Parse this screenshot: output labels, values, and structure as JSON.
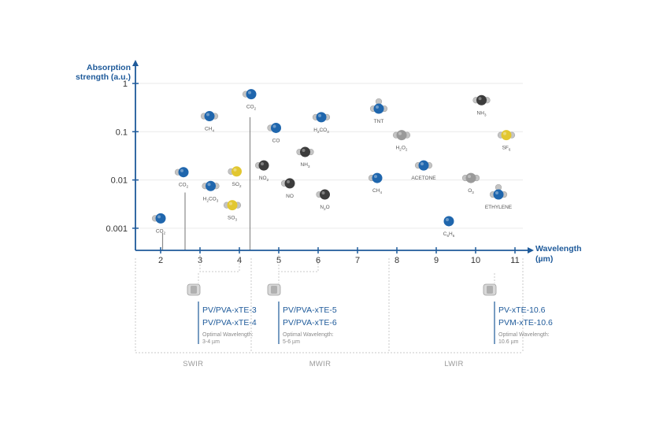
{
  "chart_data": {
    "type": "scatter",
    "xlabel": [
      "Wavelength",
      "(µm)"
    ],
    "ylabel": [
      "Absorption",
      "strength (a.u.)"
    ],
    "xlim": [
      1.35,
      11.1
    ],
    "ylim": [
      0.0003,
      1.6
    ],
    "yscale": "log",
    "grid": true,
    "x_ticks": [
      "2",
      "3",
      "4",
      "5",
      "6",
      "7",
      "8",
      "9",
      "10",
      "11"
    ],
    "y_ticks": [
      {
        "value": 1,
        "label": "1"
      },
      {
        "value": 0.1,
        "label": "0.1"
      },
      {
        "value": 0.01,
        "label": "0.01"
      },
      {
        "value": 0.001,
        "label": "0.001"
      }
    ],
    "lines": [
      {
        "x": 2.05,
        "y": 0.0008
      },
      {
        "x": 2.62,
        "y": 0.0055
      },
      {
        "x": 4.27,
        "y": 0.2
      }
    ],
    "molecules": [
      {
        "label": "CO",
        "sub": "2",
        "x": 2.0,
        "y": 0.0016,
        "color": "#1f66ad",
        "grey": 1
      },
      {
        "label": "CO",
        "sub": "2",
        "x": 2.58,
        "y": 0.0145,
        "color": "#1f66ad",
        "grey": 1
      },
      {
        "label": "CH",
        "sub": "4",
        "x": 3.24,
        "y": 0.21,
        "color": "#1f66ad",
        "grey": 2
      },
      {
        "label": "H",
        "sub": "2",
        "label2": "CO",
        "sub2": "3",
        "x": 3.27,
        "y": 0.0075,
        "color": "#1f66ad",
        "grey": 2
      },
      {
        "label": "SO",
        "sub": "2",
        "x": 3.93,
        "y": 0.015,
        "color": "#e2c731",
        "grey": 1
      },
      {
        "label": "SO",
        "sub": "3",
        "x": 3.82,
        "y": 0.003,
        "color": "#e2c731",
        "grey": 2
      },
      {
        "label": "CO",
        "sub": "2",
        "x": 4.3,
        "y": 0.6,
        "color": "#1f66ad",
        "grey": 1
      },
      {
        "label": "NO",
        "sub": "2",
        "x": 4.62,
        "y": 0.02,
        "color": "#3c3c3c",
        "grey": 1
      },
      {
        "label": "CO",
        "sub": "",
        "x": 4.93,
        "y": 0.12,
        "color": "#1f66ad",
        "grey": 1
      },
      {
        "label": "NO",
        "sub": "",
        "x": 5.28,
        "y": 0.0085,
        "color": "#3c3c3c",
        "grey": 1
      },
      {
        "label": "NH",
        "sub": "3",
        "x": 5.67,
        "y": 0.038,
        "color": "#3c3c3c",
        "grey": 2
      },
      {
        "label": "H",
        "sub": "2",
        "label2": "CO",
        "sub2": "3",
        "x": 6.08,
        "y": 0.2,
        "color": "#1f66ad",
        "grey": 2
      },
      {
        "label": "N",
        "sub": "2",
        "label2": "O",
        "sub2": "",
        "x": 6.17,
        "y": 0.005,
        "color": "#3c3c3c",
        "grey": 1
      },
      {
        "label": "TNT",
        "sub": "",
        "x": 7.54,
        "y": 0.3,
        "color": "#1f66ad",
        "grey": 3
      },
      {
        "label": "CH",
        "sub": "4",
        "x": 7.5,
        "y": 0.011,
        "color": "#1f66ad",
        "grey": 1
      },
      {
        "label": "H",
        "sub": "2",
        "label2": "O",
        "sub2": "2",
        "x": 8.12,
        "y": 0.085,
        "color": "#9a9a9a",
        "grey": 2
      },
      {
        "label": "ACETONE",
        "sub": "",
        "x": 8.68,
        "y": 0.02,
        "color": "#1f66ad",
        "grey": 2
      },
      {
        "label": "C",
        "sub": "6",
        "label2": "H",
        "sub2": "6",
        "x": 9.32,
        "y": 0.0014,
        "color": "#1f66ad",
        "grey": 0
      },
      {
        "label": "O",
        "sub": "3",
        "x": 9.88,
        "y": 0.011,
        "color": "#9a9a9a",
        "grey": 2
      },
      {
        "label": "NH",
        "sub": "3",
        "x": 10.15,
        "y": 0.45,
        "color": "#3c3c3c",
        "grey": 2
      },
      {
        "label": "ETHYLENE",
        "sub": "",
        "x": 10.58,
        "y": 0.005,
        "color": "#1f66ad",
        "grey": 3
      },
      {
        "label": "SF",
        "sub": "6",
        "x": 10.78,
        "y": 0.085,
        "color": "#e2c731",
        "grey": 2
      }
    ]
  },
  "detectors": [
    {
      "names": [
        "PV/PVA-xTE-3",
        "PV/PVA-xTE-4"
      ],
      "note_label": "Optimal Wavelength:",
      "note_value": "3-4 µm",
      "range": [
        3,
        4
      ]
    },
    {
      "names": [
        "PV/PVA-xTE-5",
        "PV/PVA-xTE-6"
      ],
      "note_label": "Optimal Wavelength:",
      "note_value": "5-6 µm",
      "range": [
        5,
        6
      ]
    },
    {
      "names": [
        "PV-xTE-10.6",
        "PVM-xTE-10.6"
      ],
      "note_label": "Optimal Wavelength:",
      "note_value": "10.6 µm",
      "range": [
        10.6,
        10.6
      ]
    }
  ],
  "bands": [
    {
      "label": "SWIR",
      "from": 1.35,
      "to": 4.3
    },
    {
      "label": "MWIR",
      "from": 4.3,
      "to": 7.8
    },
    {
      "label": "LWIR",
      "from": 7.8,
      "to": 11.1
    }
  ],
  "colors": {
    "axis": "#1e5a9a",
    "line": "#8a8a8a",
    "grid": "#eaeaea",
    "dash": "#c8c8c8"
  }
}
